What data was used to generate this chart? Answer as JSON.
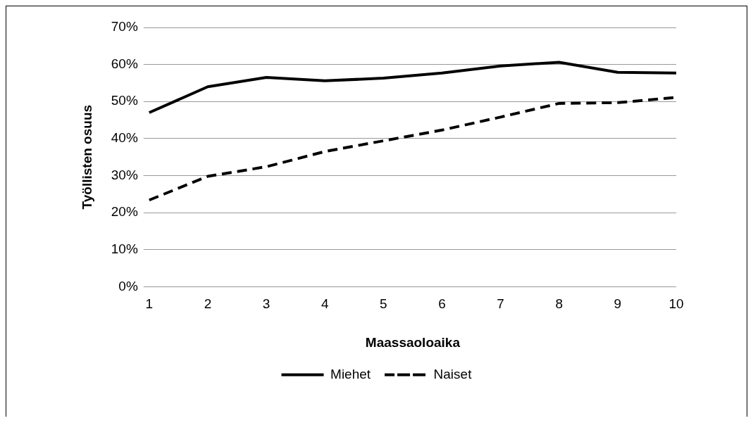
{
  "chart_data": {
    "type": "line",
    "xlabel": "Maassaoloaika",
    "ylabel": "Työllisten osuus",
    "categories": [
      "1",
      "2",
      "3",
      "4",
      "5",
      "6",
      "7",
      "8",
      "9",
      "10"
    ],
    "series": [
      {
        "name": "Miehet",
        "color": "#000000",
        "line_style": "solid",
        "values": [
          47.0,
          54.0,
          56.5,
          55.6,
          56.3,
          57.7,
          59.6,
          60.6,
          57.9,
          57.7
        ]
      },
      {
        "name": "Naiset",
        "color": "#000000",
        "line_style": "dashed",
        "values": [
          23.4,
          29.8,
          32.4,
          36.5,
          39.4,
          42.3,
          45.8,
          49.5,
          49.7,
          51.1
        ]
      }
    ],
    "ylim": [
      0,
      70
    ],
    "yticks": [
      {
        "value": 0,
        "label": "0%"
      },
      {
        "value": 10,
        "label": "10%"
      },
      {
        "value": 20,
        "label": "20%"
      },
      {
        "value": 30,
        "label": "30%"
      },
      {
        "value": 40,
        "label": "40%"
      },
      {
        "value": 50,
        "label": "50%"
      },
      {
        "value": 60,
        "label": "60%"
      },
      {
        "value": 70,
        "label": "70%"
      }
    ],
    "grid": "y",
    "legend": "bottom",
    "marker": "none"
  }
}
